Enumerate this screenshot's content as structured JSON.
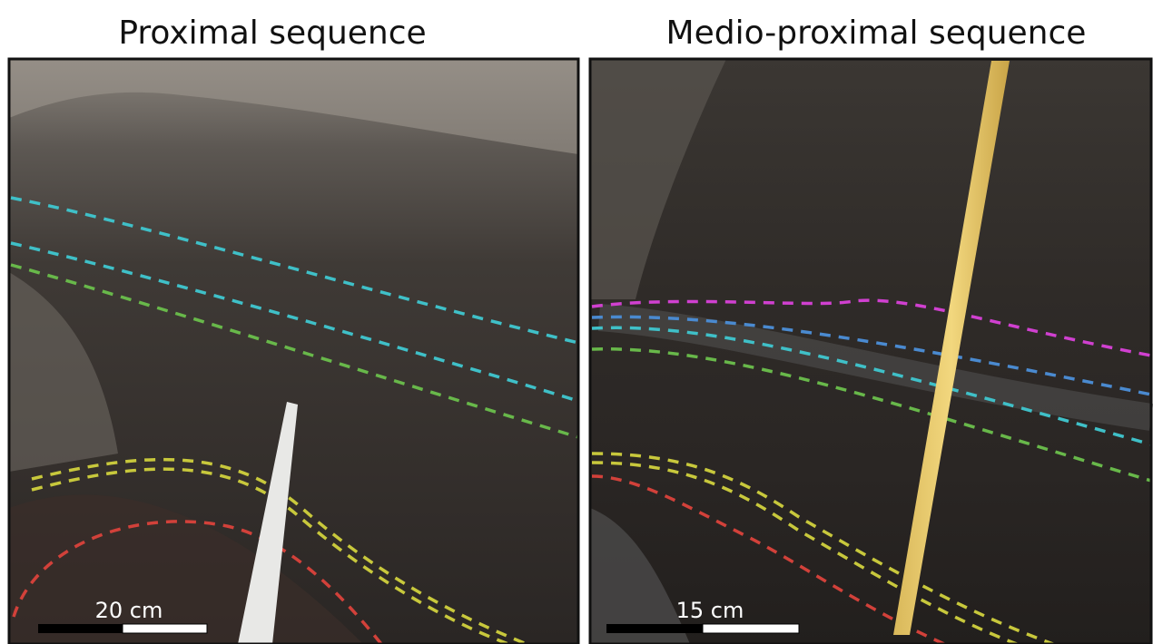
{
  "panels": [
    {
      "title": "Proximal sequence",
      "scale_label": "20 cm"
    },
    {
      "title": "Medio-proximal sequence",
      "scale_label": "15 cm"
    }
  ]
}
